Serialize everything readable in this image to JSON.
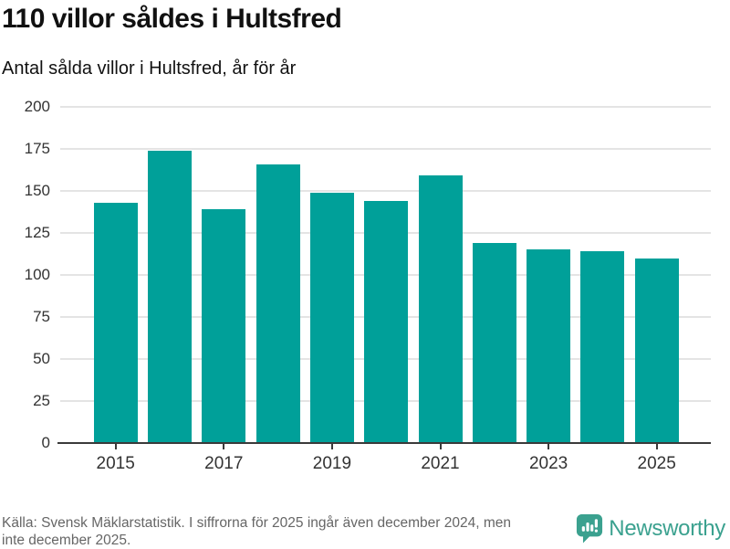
{
  "title": "110 villor såldes i Hultsfred",
  "subtitle": "Antal sålda villor i Hultsfred, år för år",
  "chart_data": {
    "type": "bar",
    "title": "110 villor såldes i Hultsfred",
    "subtitle": "Antal sålda villor i Hultsfred, år för år",
    "categories": [
      "2015",
      "2016",
      "2017",
      "2018",
      "2019",
      "2020",
      "2021",
      "2022",
      "2023",
      "2024",
      "2025"
    ],
    "values": [
      143,
      174,
      139,
      166,
      149,
      144,
      159,
      119,
      115,
      114,
      110
    ],
    "xlabel": "",
    "ylabel": "",
    "ylim": [
      0,
      200
    ],
    "yticks": [
      0,
      25,
      50,
      75,
      100,
      125,
      150,
      175,
      200
    ],
    "xtick_labels": [
      "2015",
      "2017",
      "2019",
      "2021",
      "2023",
      "2025"
    ],
    "grid": true,
    "legend_position": "none",
    "bar_color": "#00a099"
  },
  "footer": {
    "source_lines": [
      "Källa: Svensk Mäklarstatistik. I siffrorna för 2025 ingår även december 2024, men",
      "inte december 2025."
    ],
    "logo_text": "Newsworthy",
    "logo_color": "#3ba18f"
  },
  "colors": {
    "bar": "#00a099",
    "axis": "#3a3a3a",
    "gridline": "#e4e4e4",
    "title_text": "#111111",
    "tick_label": "#333333",
    "source_text": "#666666",
    "logo": "#3ba18f"
  }
}
